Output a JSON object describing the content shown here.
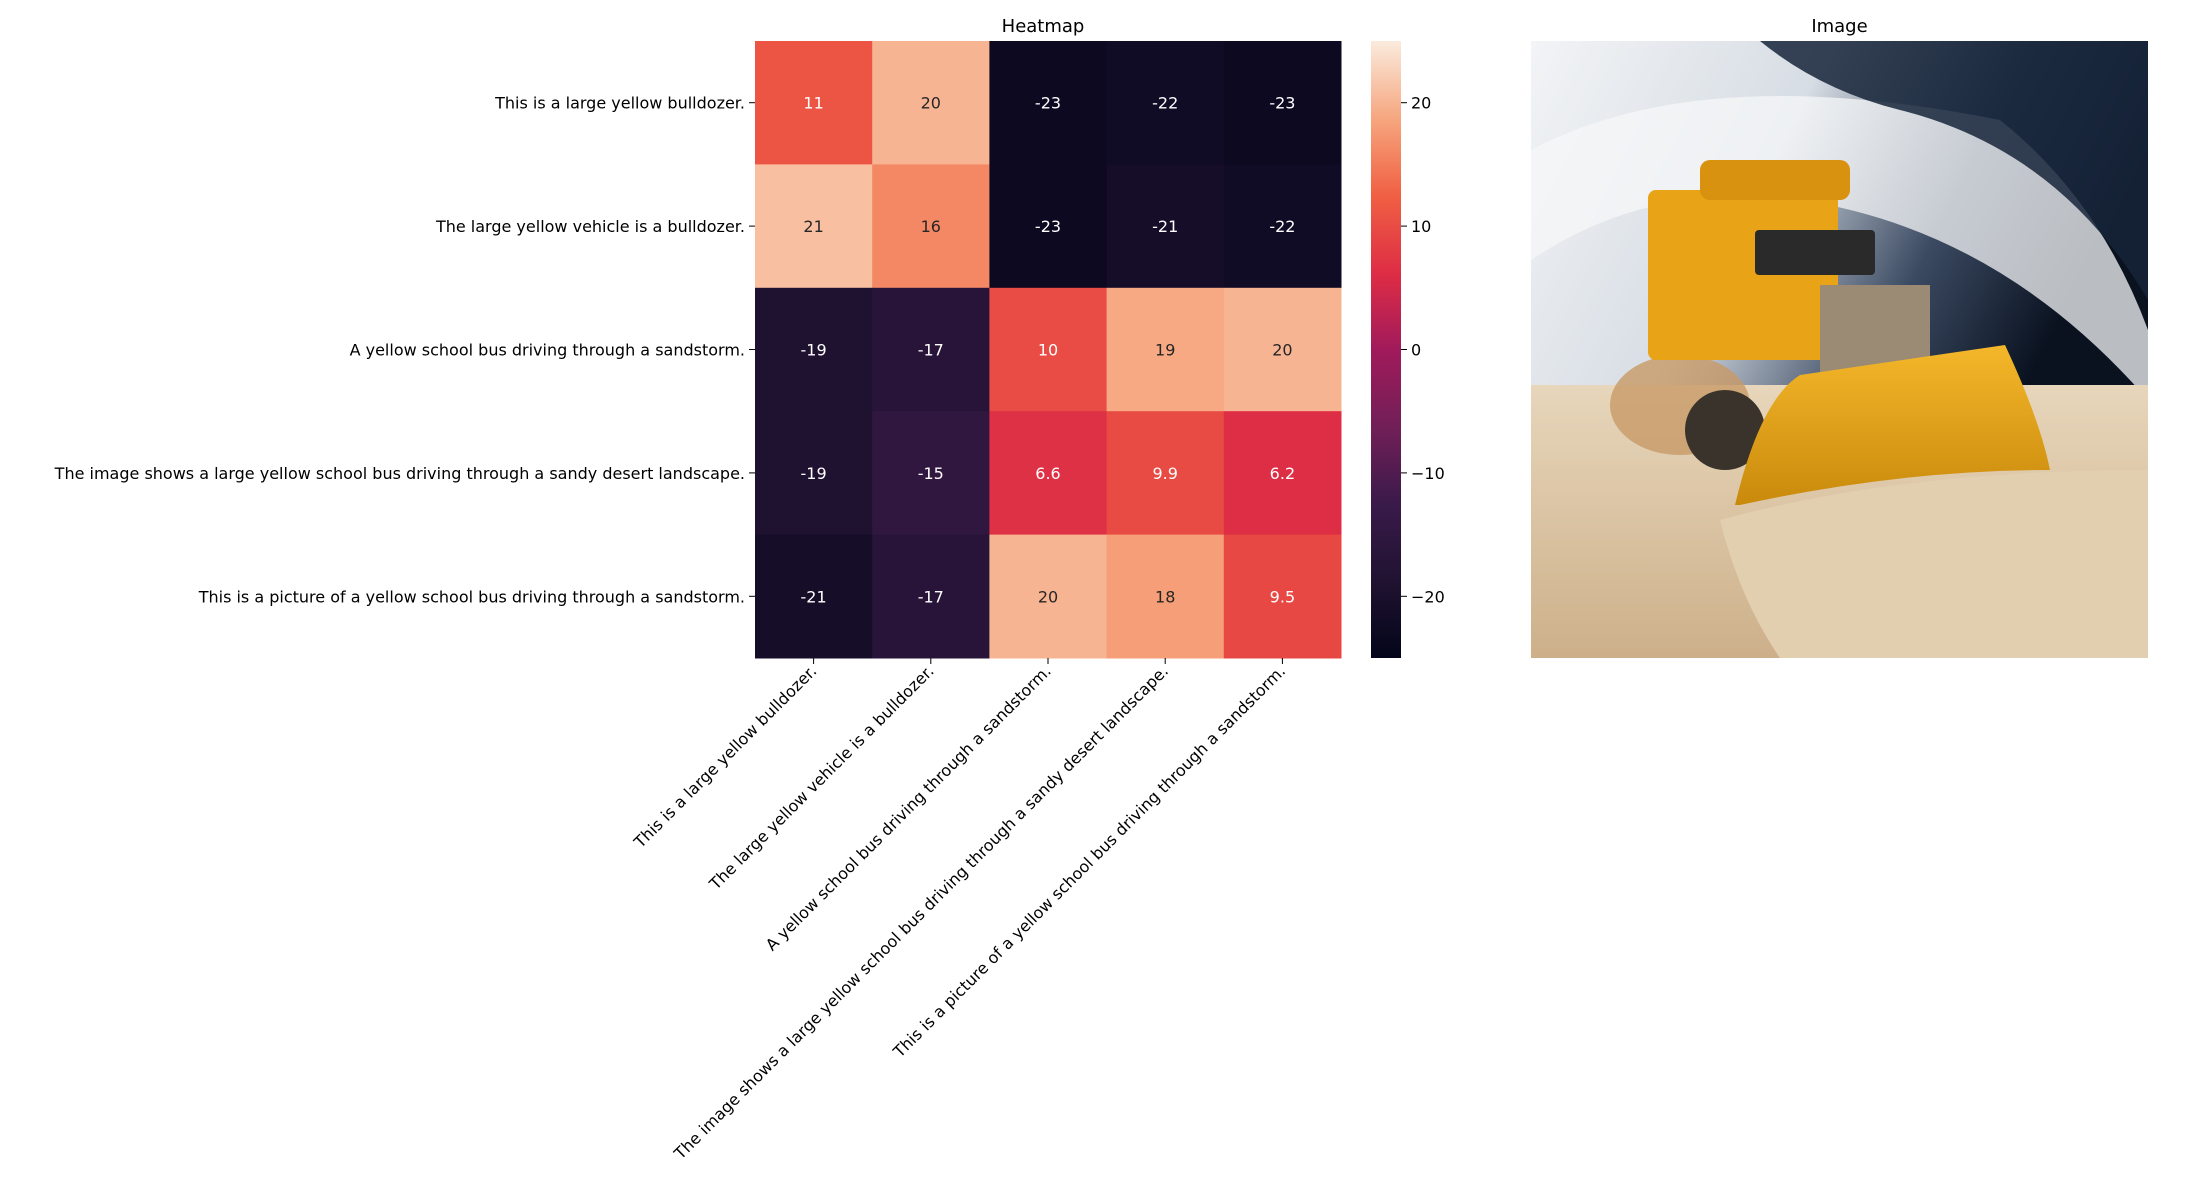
{
  "chart_data": [
    {
      "type": "heatmap",
      "title": "Heatmap",
      "xlabel": "",
      "ylabel": "",
      "rows": [
        "This is a large yellow bulldozer.",
        "The large yellow vehicle is a bulldozer.",
        "A yellow school bus driving through a sandstorm.",
        "The image shows a large yellow school bus driving through a sandy desert landscape.",
        "This is a picture of a yellow school bus driving through a sandstorm."
      ],
      "columns": [
        "This is a large yellow bulldozer.",
        "The large yellow vehicle is a bulldozer.",
        "A yellow school bus driving through a sandstorm.",
        "The image shows a large yellow school bus driving through a sandy desert landscape.",
        "This is a picture of a yellow school bus driving through a sandstorm."
      ],
      "values": [
        [
          11,
          20,
          -23,
          -22,
          -23
        ],
        [
          21,
          16,
          -23,
          -21,
          -22
        ],
        [
          -19,
          -17,
          10,
          19,
          20
        ],
        [
          -19,
          -15,
          6.6,
          9.9,
          6.2
        ],
        [
          -21,
          -17,
          20,
          18,
          9.5
        ]
      ],
      "cell_labels": [
        [
          "11",
          "20",
          "-23",
          "-22",
          "-23"
        ],
        [
          "21",
          "16",
          "-23",
          "-21",
          "-22"
        ],
        [
          "-19",
          "-17",
          "10",
          "19",
          "20"
        ],
        [
          "-19",
          "-15",
          "6.6",
          "9.9",
          "6.2"
        ],
        [
          "-21",
          "-17",
          "20",
          "18",
          "9.5"
        ]
      ],
      "colorbar": {
        "vmin": -25,
        "vmax": 25,
        "ticks": [
          20,
          10,
          0,
          -10,
          -20
        ],
        "tick_labels": [
          "20",
          "10",
          "0",
          "−10",
          "−20"
        ],
        "colormap": "rocket"
      },
      "grid": false
    },
    {
      "type": "image",
      "title": "Image",
      "image_description": "photo-yellow-bulldozer-bus-in-desert",
      "colors": {
        "sky_dark": "#0c1728",
        "sky_light": "#f1f3f5",
        "vehicle": "#e8a317",
        "sand": "#d9c09c"
      }
    }
  ]
}
